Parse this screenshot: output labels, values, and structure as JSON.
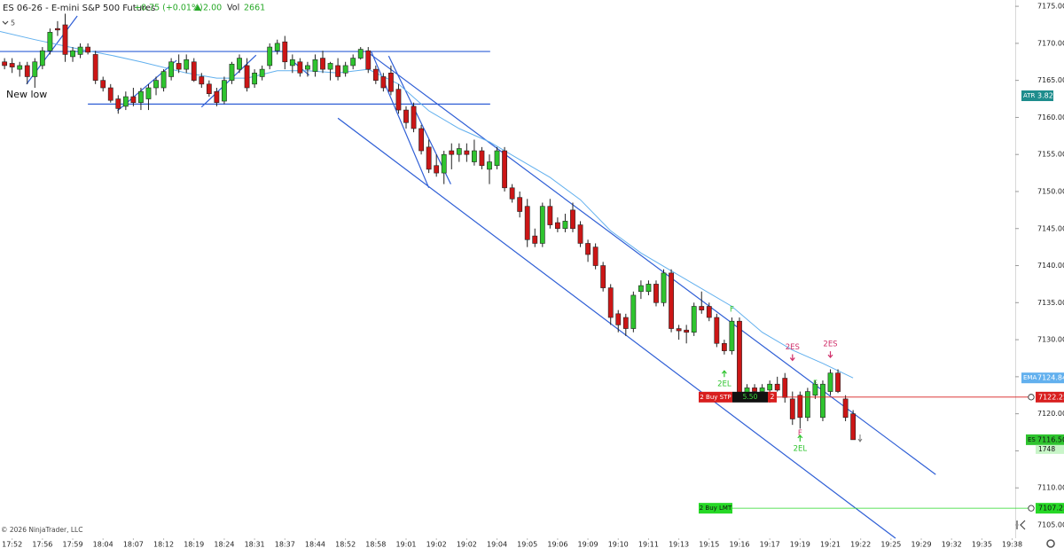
{
  "header": {
    "symbol": "ES 06-26 - E-mini S&P 500 Futures",
    "change": "+0.75 (+0.01%)",
    "tick_change": "2.00",
    "volume_label": "Vol",
    "volume": 2661,
    "interval": "5"
  },
  "copyright": "© 2026 NinjaTrader, LLC",
  "annotation": "New low",
  "chart_data": {
    "type": "candlestick",
    "up_color": "#2fc42f",
    "down_color": "#cc1616",
    "open": [
      7167.5,
      7167.3,
      7166.5,
      7167,
      7165.5,
      7167,
      7169,
      7172,
      7172.5,
      7168.2,
      7168.5,
      7169.5,
      7168.5,
      7165,
      7164,
      7162.5,
      7161.5,
      7162.8,
      7162,
      7162.5,
      7164,
      7164,
      7165.5,
      7167.3,
      7166.5,
      7167.5,
      7165.5,
      7164.5,
      7163.5,
      7162.2,
      7165,
      7166.5,
      7167,
      7164.5,
      7165.5,
      7167,
      7169,
      7170.2,
      7167,
      7167.5,
      7166.5,
      7166.2,
      7168,
      7166.5,
      7167,
      7166,
      7167,
      7168,
      7169,
      7166.5,
      7165.5,
      7166,
      7163.8,
      7161,
      7161.5,
      7158.5,
      7156,
      7153.5,
      7152.5,
      7155.5,
      7155,
      7155.5,
      7154,
      7155.5,
      7153,
      7153.5,
      7155.5,
      7150.5,
      7149.2,
      7148,
      7144,
      7143,
      7148,
      7145.8,
      7145,
      7147.5,
      7145.5,
      7143,
      7142.5,
      7140,
      7137,
      7133.5,
      7133,
      7131.5,
      7136.5,
      7136.5,
      7137.5,
      7135,
      7139,
      7131.5,
      7131.3,
      7131,
      7134.5,
      7134.5,
      7133,
      7129.5,
      7128.5,
      7132.5,
      7122.8,
      7123.5,
      7123,
      7123.2,
      7124,
      7124.8,
      7122,
      7122.5,
      7119.5,
      7122.5,
      7119.5,
      7123,
      7125.5,
      7122,
      7120
    ],
    "high": [
      7168,
      7168,
      7167.5,
      7167.5,
      7168,
      7169.5,
      7172,
      7173,
      7174,
      7169.5,
      7170,
      7170,
      7169,
      7165.5,
      7164.5,
      7163,
      7163.5,
      7164,
      7164,
      7164.5,
      7165.5,
      7166.5,
      7168,
      7168.5,
      7168.5,
      7168,
      7166,
      7165,
      7164,
      7165.5,
      7167.5,
      7168.5,
      7168,
      7166.5,
      7167,
      7170,
      7170.5,
      7171,
      7168.5,
      7168,
      7167.5,
      7168.5,
      7169,
      7167.5,
      7168,
      7167.5,
      7168.5,
      7169.5,
      7169.5,
      7167,
      7166,
      7167,
      7164.5,
      7161.5,
      7162,
      7159,
      7157,
      7155,
      7155.5,
      7156.5,
      7156.5,
      7156.5,
      7157,
      7156,
      7155,
      7156,
      7156,
      7151,
      7150,
      7149,
      7145,
      7148.5,
      7149,
      7146.5,
      7147,
      7148.5,
      7146,
      7143.5,
      7143,
      7140.5,
      7137.5,
      7134,
      7133.5,
      7136.5,
      7138,
      7138,
      7138,
      7139.5,
      7139.5,
      7132,
      7132,
      7135,
      7136.5,
      7135,
      7133.5,
      7130,
      7133,
      7133,
      7124,
      7124,
      7124,
      7124.5,
      7125,
      7125.5,
      7123,
      7123,
      7123.5,
      7124.5,
      7124.5,
      7126,
      7126,
      7122.5,
      7120.5
    ],
    "low": [
      7166.5,
      7166,
      7165.5,
      7164.5,
      7164,
      7166.5,
      7168.5,
      7171,
      7167.5,
      7167.5,
      7168,
      7168.5,
      7164.5,
      7163.5,
      7162,
      7160.5,
      7161,
      7161.5,
      7161,
      7161,
      7163,
      7163.5,
      7165,
      7166,
      7166,
      7164.8,
      7164,
      7162.8,
      7161.5,
      7161.8,
      7164.5,
      7166,
      7163.5,
      7164,
      7165,
      7166.5,
      7168.5,
      7166.5,
      7166,
      7165.5,
      7165.5,
      7165.5,
      7166,
      7165,
      7165,
      7165.5,
      7166.5,
      7167.8,
      7166,
      7164.5,
      7163.5,
      7163,
      7160.5,
      7158.5,
      7158,
      7155,
      7152.5,
      7152,
      7151,
      7153,
      7154,
      7154,
      7153.5,
      7153,
      7151,
      7153,
      7150,
      7148.5,
      7146.5,
      7142.5,
      7142.5,
      7142.5,
      7145,
      7144.5,
      7144.5,
      7144.5,
      7142.5,
      7140.5,
      7139.5,
      7136.5,
      7132,
      7131,
      7130.5,
      7131,
      7135.5,
      7136,
      7134.5,
      7134.5,
      7131,
      7130,
      7129.5,
      7130.5,
      7133.5,
      7132.5,
      7129,
      7128,
      7128,
      7122,
      7122,
      7122.5,
      7122.5,
      7121.5,
      7123,
      7121.5,
      7118.5,
      7118,
      7119,
      7122,
      7119,
      7122.5,
      7122.8,
      7119,
      7116.5
    ],
    "close": [
      7167,
      7166.8,
      7167,
      7165.5,
      7167.5,
      7169,
      7171.5,
      7171.8,
      7168.5,
      7169,
      7169.5,
      7168.8,
      7165,
      7164,
      7162.3,
      7161.2,
      7162.8,
      7162,
      7163.5,
      7164,
      7165,
      7166.2,
      7167.5,
      7166.5,
      7167.8,
      7165,
      7164.5,
      7163.2,
      7162,
      7165,
      7167.2,
      7168,
      7164,
      7166,
      7166.5,
      7169.5,
      7170,
      7167.5,
      7167.8,
      7166,
      7167,
      7167.8,
      7166.5,
      7167.3,
      7165.5,
      7167,
      7168,
      7169.2,
      7166.5,
      7165,
      7164,
      7163.5,
      7161,
      7159.3,
      7158.5,
      7155.5,
      7153,
      7152.5,
      7155,
      7155,
      7155.8,
      7155,
      7155.5,
      7153.5,
      7154,
      7155.5,
      7150.5,
      7149,
      7147.3,
      7143.5,
      7143,
      7148,
      7145.5,
      7145,
      7146,
      7145,
      7143,
      7141.5,
      7140,
      7137,
      7133,
      7132,
      7131.5,
      7136,
      7137.3,
      7137.5,
      7135,
      7139,
      7131.5,
      7131.2,
      7131,
      7134.5,
      7134,
      7133,
      7129.5,
      7128.5,
      7132.5,
      7122.5,
      7123.5,
      7123,
      7123.5,
      7124,
      7123.2,
      7122.2,
      7119.3,
      7119.5,
      7123,
      7124,
      7124,
      7125.5,
      7123,
      7119.5,
      7116.5
    ],
    "xlim": [
      -0.6,
      133.4
    ],
    "xticks": [
      {
        "value": 1,
        "label": "17:52"
      },
      {
        "value": 5,
        "label": "17:56"
      },
      {
        "value": 9,
        "label": "17:59"
      },
      {
        "value": 13,
        "label": "18:04"
      },
      {
        "value": 17,
        "label": "18:07"
      },
      {
        "value": 21,
        "label": "18:12"
      },
      {
        "value": 25,
        "label": "18:19"
      },
      {
        "value": 29,
        "label": "18:24"
      },
      {
        "value": 33,
        "label": "18:31"
      },
      {
        "value": 37,
        "label": "18:37"
      },
      {
        "value": 41,
        "label": "18:44"
      },
      {
        "value": 45,
        "label": "18:52"
      },
      {
        "value": 49,
        "label": "18:58"
      },
      {
        "value": 53,
        "label": "19:01"
      },
      {
        "value": 57,
        "label": "19:02"
      },
      {
        "value": 61,
        "label": "19:02"
      },
      {
        "value": 65,
        "label": "19:04"
      },
      {
        "value": 69,
        "label": "19:05"
      },
      {
        "value": 73,
        "label": "19:06"
      },
      {
        "value": 77,
        "label": "19:09"
      },
      {
        "value": 81,
        "label": "19:10"
      },
      {
        "value": 85,
        "label": "19:11"
      },
      {
        "value": 89,
        "label": "19:13"
      },
      {
        "value": 93,
        "label": "19:15"
      },
      {
        "value": 97,
        "label": "19:16"
      },
      {
        "value": 101,
        "label": "19:17"
      },
      {
        "value": 105,
        "label": "19:19"
      },
      {
        "value": 109,
        "label": "19:21"
      },
      {
        "value": 113,
        "label": "19:22"
      },
      {
        "value": 117,
        "label": "19:25"
      },
      {
        "value": 121,
        "label": "19:29"
      },
      {
        "value": 125,
        "label": "19:32"
      },
      {
        "value": 129,
        "label": "19:35"
      },
      {
        "value": 133,
        "label": "19:38"
      }
    ],
    "ylim": [
      7103.2,
      7175.85
    ],
    "yticks": [
      {
        "value": 7175,
        "label": "7175.00"
      },
      {
        "value": 7170,
        "label": "7170.00"
      },
      {
        "value": 7165,
        "label": "7165.00"
      },
      {
        "value": 7160,
        "label": "7160.00"
      },
      {
        "value": 7155,
        "label": "7155.00"
      },
      {
        "value": 7150,
        "label": "7150.00"
      },
      {
        "value": 7145,
        "label": "7145.00"
      },
      {
        "value": 7140,
        "label": "7140.00"
      },
      {
        "value": 7135,
        "label": "7135.00"
      },
      {
        "value": 7130,
        "label": "7130.00"
      },
      {
        "value": 7125,
        "label": "7125.00"
      },
      {
        "value": 7120,
        "label": "7120.00"
      },
      {
        "value": 7115,
        "label": "7115.00"
      },
      {
        "value": 7110,
        "label": "7110.00"
      },
      {
        "value": 7105,
        "label": "7105.00"
      }
    ],
    "grid": false,
    "ema": {
      "name": "EMA",
      "color": "#62b0ee",
      "x": [
        -0.6,
        4,
        10,
        14,
        18,
        24,
        28,
        32,
        36,
        40,
        44,
        48,
        52,
        56,
        60,
        64,
        68,
        72,
        76,
        80,
        84,
        88,
        92,
        96,
        100,
        104,
        108,
        112
      ],
      "values": [
        7171.6,
        7170.5,
        7169.2,
        7168.4,
        7167.5,
        7166,
        7165.3,
        7165.3,
        7166.3,
        7166.3,
        7166,
        7166.5,
        7164.5,
        7160.9,
        7158.5,
        7156.7,
        7154.3,
        7151.9,
        7148.9,
        7144.7,
        7141.7,
        7139.3,
        7136.9,
        7134.5,
        7131,
        7128.6,
        7126.8,
        7124.84
      ]
    },
    "atr": {
      "name": "ATR",
      "value": 3.82
    },
    "last_price": {
      "name": "ES",
      "value": 7116.5,
      "label": "7116.50",
      "volume": 1748
    },
    "drawings_color": "#2f5fd6",
    "drawings": [
      {
        "x": [
          -0.6,
          64.1
        ],
        "values": [
          7168.9,
          7168.9
        ]
      },
      {
        "x": [
          11,
          64.1
        ],
        "values": [
          7161.8,
          7161.8
        ]
      },
      {
        "x": [
          47.8,
          122.9
        ],
        "values": [
          7168.9,
          7111.8
        ]
      },
      {
        "x": [
          44,
          117.6
        ],
        "values": [
          7159.9,
          7103.2
        ]
      },
      {
        "x": [
          2.9,
          9.6
        ],
        "values": [
          7164.5,
          7173.7
        ]
      },
      {
        "x": [
          14.9,
          22.7
        ],
        "values": [
          7160.9,
          7167.7
        ]
      },
      {
        "x": [
          26,
          33.2
        ],
        "values": [
          7161.4,
          7168.4
        ]
      },
      {
        "x": [
          37.9,
          40.2
        ],
        "values": [
          7167.7,
          7165.7
        ]
      },
      {
        "x": [
          48.4,
          56
        ],
        "values": [
          7168.9,
          7150.5
        ]
      },
      {
        "x": [
          50.7,
          58.9
        ],
        "values": [
          7168.3,
          7151
        ]
      }
    ],
    "orders": [
      {
        "label": "2 Buy STP",
        "price": 7122.25,
        "color": "#d81e1e",
        "pnl": "5.50",
        "quantity": 2
      },
      {
        "label": "2 Buy LMT",
        "price": 7107.25,
        "color": "#27d827"
      }
    ],
    "signals": [
      {
        "text": "2ES",
        "index": 104,
        "price": 7129,
        "color": "#d0306a",
        "direction": "down"
      },
      {
        "text": "2ES",
        "index": 109,
        "price": 7129.4,
        "color": "#d0306a",
        "direction": "down"
      },
      {
        "text": "2EL",
        "index": 95,
        "price": 7124,
        "color": "#2fc42f",
        "direction": "up"
      },
      {
        "text": "2EL",
        "index": 105,
        "price": 7115.3,
        "color": "#2fc42f",
        "direction": "up"
      },
      {
        "text": "F",
        "index": 96,
        "price": 7134.1,
        "color": "#2fc42f"
      },
      {
        "text": "F",
        "index": 105,
        "price": 7117.4,
        "color": "#d0306a"
      },
      {
        "text": "F",
        "index": 107,
        "price": 7124.1,
        "color": "#2fc42f"
      }
    ]
  }
}
